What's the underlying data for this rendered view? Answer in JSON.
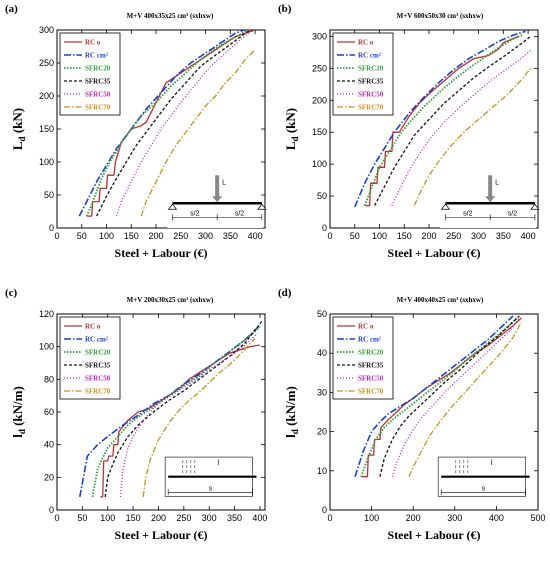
{
  "series_colors": {
    "RC o": "#b83232",
    "RC cm²": "#1a3fd6",
    "SFRC20": "#2e9e3a",
    "SFRC35": "#111111",
    "SFRC50": "#c21fc2",
    "SFRC70": "#c9901a"
  },
  "chart_data": [
    {
      "type": "line",
      "panel": "(a)",
      "title": "M+V 400x35x25 cm³ (sxhxw)",
      "xlabel": "Steel + Labour (€)",
      "ylabel": "L",
      "ylabel_sub": "d",
      "ylabel_unit": " (kN)",
      "xlim": [
        0,
        420
      ],
      "ylim": [
        0,
        300
      ],
      "xticks": [
        0,
        50,
        100,
        150,
        200,
        250,
        300,
        350,
        400
      ],
      "yticks": [
        0,
        50,
        100,
        150,
        200,
        250,
        300
      ],
      "legend": "top-left",
      "diagram": {
        "type": "point",
        "load": "L",
        "spans": [
          "s/2",
          "s/2"
        ]
      },
      "series": [
        {
          "name": "RC o",
          "x": [
            60,
            70,
            72,
            85,
            87,
            100,
            102,
            115,
            118,
            130,
            150,
            170,
            180,
            200,
            220,
            250,
            280,
            300,
            320,
            340,
            360,
            380,
            400
          ],
          "y": [
            18,
            18,
            40,
            40,
            60,
            60,
            80,
            80,
            100,
            130,
            150,
            155,
            160,
            190,
            220,
            235,
            250,
            260,
            270,
            280,
            290,
            295,
            300
          ]
        },
        {
          "name": "RC cm²",
          "x": [
            45,
            60,
            80,
            100,
            120,
            150,
            180,
            210,
            240,
            270,
            300,
            330,
            360,
            385
          ],
          "y": [
            18,
            40,
            70,
            95,
            120,
            150,
            180,
            205,
            230,
            250,
            265,
            280,
            295,
            302
          ]
        },
        {
          "name": "SFRC20",
          "x": [
            60,
            70,
            80,
            90,
            100,
            110,
            120,
            130,
            150,
            170,
            200,
            230,
            260,
            290,
            320,
            350,
            380,
            395
          ],
          "y": [
            18,
            35,
            55,
            75,
            90,
            105,
            115,
            130,
            150,
            170,
            190,
            215,
            235,
            255,
            272,
            285,
            298,
            302
          ]
        },
        {
          "name": "SFRC35",
          "x": [
            80,
            100,
            120,
            140,
            160,
            180,
            200,
            230,
            260,
            290,
            320,
            350,
            380,
            400
          ],
          "y": [
            18,
            48,
            75,
            100,
            125,
            145,
            165,
            195,
            220,
            245,
            262,
            278,
            295,
            305
          ]
        },
        {
          "name": "SFRC50",
          "x": [
            120,
            130,
            150,
            170,
            190,
            210,
            230,
            250,
            280,
            310,
            340,
            370,
            395
          ],
          "y": [
            18,
            40,
            70,
            100,
            125,
            150,
            170,
            190,
            218,
            245,
            265,
            285,
            300
          ]
        },
        {
          "name": "SFRC70",
          "x": [
            170,
            180,
            200,
            220,
            240,
            260,
            280,
            300,
            320,
            340,
            360,
            380,
            400
          ],
          "y": [
            18,
            40,
            70,
            100,
            125,
            145,
            165,
            185,
            200,
            220,
            235,
            255,
            270
          ]
        }
      ]
    },
    {
      "type": "line",
      "panel": "(b)",
      "title": "M+V 600x50x30 cm³ (sxhxw)",
      "xlabel": "Steel + Labour (€)",
      "ylabel": "L",
      "ylabel_sub": "d",
      "ylabel_unit": " (kN)",
      "xlim": [
        0,
        420
      ],
      "ylim": [
        0,
        310
      ],
      "xticks": [
        0,
        50,
        100,
        150,
        200,
        250,
        300,
        350,
        400
      ],
      "yticks": [
        0,
        50,
        100,
        150,
        200,
        250,
        300
      ],
      "legend": "top-left",
      "diagram": {
        "type": "point",
        "load": "L",
        "spans": [
          "s/2",
          "s/2"
        ]
      },
      "series": [
        {
          "name": "RC o",
          "x": [
            70,
            80,
            82,
            95,
            97,
            110,
            112,
            125,
            127,
            140,
            160,
            180,
            200,
            230,
            260,
            290,
            320,
            340,
            350,
            380
          ],
          "y": [
            35,
            35,
            70,
            70,
            95,
            95,
            120,
            120,
            150,
            150,
            175,
            195,
            210,
            230,
            250,
            265,
            270,
            280,
            290,
            300
          ]
        },
        {
          "name": "RC cm²",
          "x": [
            50,
            70,
            90,
            110,
            130,
            160,
            190,
            220,
            250,
            280,
            310,
            340,
            370,
            395
          ],
          "y": [
            33,
            70,
            100,
            125,
            150,
            180,
            205,
            228,
            248,
            265,
            278,
            292,
            302,
            308
          ]
        },
        {
          "name": "SFRC20",
          "x": [
            70,
            80,
            90,
            100,
            120,
            140,
            160,
            190,
            220,
            250,
            280,
            310,
            340,
            370,
            390
          ],
          "y": [
            35,
            55,
            75,
            95,
            120,
            145,
            165,
            190,
            212,
            232,
            250,
            266,
            282,
            296,
            303
          ]
        },
        {
          "name": "SFRC35",
          "x": [
            90,
            110,
            130,
            150,
            170,
            200,
            230,
            260,
            290,
            320,
            350,
            380,
            405
          ],
          "y": [
            35,
            65,
            95,
            120,
            145,
            170,
            195,
            215,
            235,
            252,
            268,
            285,
            300
          ]
        },
        {
          "name": "SFRC50",
          "x": [
            125,
            140,
            160,
            180,
            200,
            230,
            260,
            290,
            320,
            350,
            380,
            405
          ],
          "y": [
            35,
            60,
            90,
            115,
            138,
            165,
            188,
            208,
            228,
            245,
            262,
            278
          ]
        },
        {
          "name": "SFRC70",
          "x": [
            170,
            185,
            200,
            220,
            240,
            270,
            300,
            330,
            360,
            390,
            405
          ],
          "y": [
            35,
            60,
            82,
            105,
            125,
            150,
            170,
            190,
            210,
            235,
            250
          ]
        }
      ]
    },
    {
      "type": "line",
      "panel": "(c)",
      "title": "M+V 200x30x25 cm³ (sxhxw)",
      "xlabel": "Steel + Labour (€)",
      "ylabel": "l",
      "ylabel_sub": "d",
      "ylabel_unit": " (kN/m)",
      "xlim": [
        0,
        410
      ],
      "ylim": [
        0,
        120
      ],
      "xticks": [
        0,
        50,
        100,
        150,
        200,
        250,
        300,
        350,
        400
      ],
      "yticks": [
        0,
        20,
        40,
        60,
        80,
        100,
        120
      ],
      "legend": "top-left",
      "diagram": {
        "type": "distributed",
        "load": "l",
        "spans": [
          "s"
        ]
      },
      "series": [
        {
          "name": "RC o",
          "x": [
            85,
            90,
            92,
            100,
            102,
            110,
            112,
            120,
            122,
            140,
            160,
            180,
            200,
            220,
            240,
            260,
            280,
            300,
            320,
            340,
            360,
            380,
            400
          ],
          "y": [
            8,
            8,
            30,
            30,
            33,
            33,
            40,
            40,
            48,
            55,
            60,
            62,
            66,
            70,
            74,
            80,
            84,
            88,
            92,
            96,
            98,
            100,
            101
          ]
        },
        {
          "name": "RC cm²",
          "x": [
            45,
            60,
            80,
            100,
            130,
            160,
            190,
            220,
            250,
            280,
            310,
            340,
            370,
            400
          ],
          "y": [
            8,
            33,
            40,
            45,
            52,
            58,
            65,
            70,
            77,
            83,
            90,
            97,
            104,
            113
          ]
        },
        {
          "name": "SFRC20",
          "x": [
            70,
            80,
            90,
            100,
            120,
            140,
            160,
            190,
            220,
            250,
            280,
            310,
            340,
            370,
            400
          ],
          "y": [
            8,
            25,
            32,
            38,
            45,
            52,
            57,
            63,
            70,
            76,
            82,
            90,
            97,
            104,
            112
          ]
        },
        {
          "name": "SFRC35",
          "x": [
            95,
            100,
            110,
            120,
            140,
            160,
            190,
            220,
            250,
            280,
            310,
            340,
            370,
            405
          ],
          "y": [
            8,
            20,
            28,
            35,
            45,
            52,
            60,
            67,
            73,
            80,
            87,
            94,
            102,
            116
          ]
        },
        {
          "name": "SFRC50",
          "x": [
            125,
            130,
            140,
            150,
            170,
            190,
            210,
            240,
            270,
            300,
            330,
            360,
            395
          ],
          "y": [
            8,
            25,
            38,
            45,
            55,
            62,
            67,
            73,
            79,
            86,
            92,
            98,
            108
          ]
        },
        {
          "name": "SFRC70",
          "x": [
            170,
            175,
            185,
            200,
            220,
            240,
            260,
            280,
            300,
            320,
            340,
            360,
            390
          ],
          "y": [
            8,
            20,
            32,
            43,
            53,
            61,
            67,
            72,
            78,
            84,
            89,
            95,
            105
          ]
        }
      ]
    },
    {
      "type": "line",
      "panel": "(d)",
      "title": "M+V 400x40x25 cm³ (sxhxw)",
      "xlabel": "Steel + Labour (€)",
      "ylabel": "l",
      "ylabel_sub": "d",
      "ylabel_unit": " (kN/m)",
      "xlim": [
        0,
        500
      ],
      "ylim": [
        0,
        50
      ],
      "xticks": [
        0,
        100,
        200,
        300,
        400,
        500
      ],
      "yticks": [
        0,
        10,
        20,
        30,
        40,
        50
      ],
      "legend": "top-left",
      "diagram": {
        "type": "distributed",
        "load": "l",
        "spans": [
          "s"
        ]
      },
      "series": [
        {
          "name": "RC o",
          "x": [
            75,
            90,
            92,
            105,
            107,
            120,
            122,
            140,
            160,
            180,
            200,
            230,
            260,
            290,
            320,
            350,
            380,
            410,
            440,
            460
          ],
          "y": [
            8.5,
            8.5,
            14,
            14,
            18,
            18,
            21,
            23,
            25,
            27,
            28.5,
            31,
            33,
            35,
            37.5,
            40,
            42,
            44.5,
            47,
            49
          ]
        },
        {
          "name": "RC cm²",
          "x": [
            60,
            80,
            100,
            120,
            140,
            170,
            200,
            230,
            260,
            290,
            320,
            350,
            380,
            410,
            440
          ],
          "y": [
            8.5,
            15,
            20,
            22.5,
            24.5,
            26.5,
            28.5,
            31,
            33.5,
            36,
            38.5,
            41,
            43.5,
            46.5,
            49.5
          ]
        },
        {
          "name": "SFRC20",
          "x": [
            75,
            90,
            110,
            130,
            150,
            180,
            210,
            240,
            270,
            300,
            330,
            360,
            390,
            420,
            450
          ],
          "y": [
            8.5,
            13,
            18,
            21,
            23,
            25.5,
            28,
            30.5,
            33,
            35.5,
            38.5,
            41,
            43.5,
            46,
            49
          ]
        },
        {
          "name": "SFRC35",
          "x": [
            120,
            130,
            150,
            170,
            190,
            220,
            250,
            280,
            310,
            340,
            370,
            400,
            430,
            455
          ],
          "y": [
            8.5,
            13,
            18,
            21.5,
            24,
            27,
            30,
            33,
            35.5,
            38.5,
            41.5,
            44,
            47,
            49.5
          ]
        },
        {
          "name": "SFRC50",
          "x": [
            150,
            160,
            180,
            200,
            220,
            250,
            280,
            310,
            340,
            370,
            400,
            430,
            455
          ],
          "y": [
            8.5,
            12,
            17,
            20.5,
            23.5,
            27,
            30.5,
            33.5,
            36.5,
            39.5,
            42.5,
            45.5,
            49
          ]
        },
        {
          "name": "SFRC70",
          "x": [
            190,
            200,
            220,
            240,
            260,
            290,
            320,
            350,
            380,
            410,
            440,
            460
          ],
          "y": [
            8.5,
            11,
            15,
            19,
            22,
            26,
            29.5,
            33,
            36.5,
            40,
            44,
            48
          ]
        }
      ]
    }
  ]
}
